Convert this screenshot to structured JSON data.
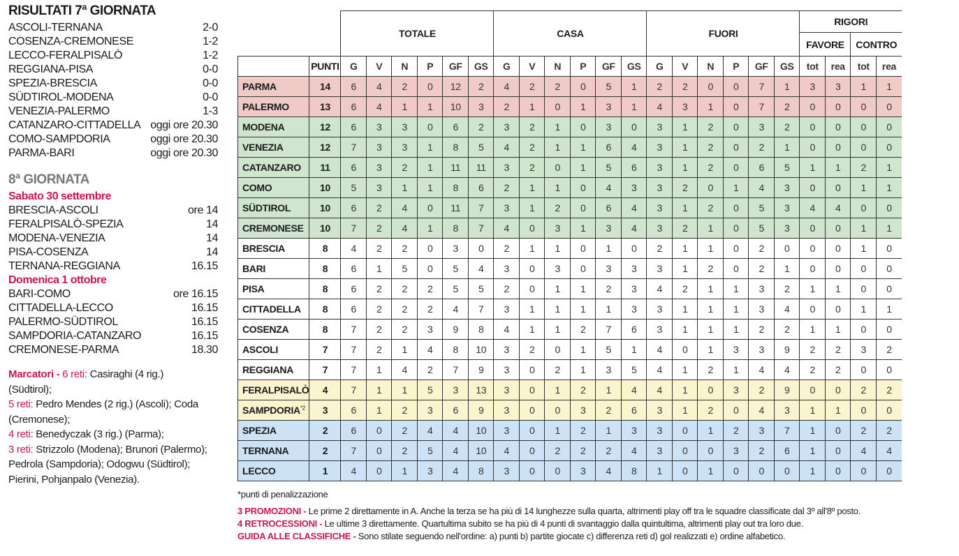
{
  "results": {
    "title": "RISULTATI 7ª GIORNATA",
    "matches": [
      [
        "ASCOLI-TERNANA",
        "2-0"
      ],
      [
        "COSENZA-CREMONESE",
        "1-2"
      ],
      [
        "LECCO-FERALPISALÒ",
        "1-2"
      ],
      [
        "REGGIANA-PISA",
        "0-0"
      ],
      [
        "SPEZIA-BRESCIA",
        "0-0"
      ],
      [
        "SÜDTIROL-MODENA",
        "0-0"
      ],
      [
        "VENEZIA-PALERMO",
        "1-3"
      ],
      [
        "CATANZARO-CITTADELLA",
        "oggi ore 20.30"
      ],
      [
        "COMO-SAMPDORIA",
        "oggi ore 20.30"
      ],
      [
        "PARMA-BARI",
        "oggi ore 20.30"
      ]
    ]
  },
  "next": {
    "title": "8ª GIORNATA",
    "days": [
      {
        "label": "Sabato 30 settembre",
        "matches": [
          [
            "BRESCIA-ASCOLI",
            "ore 14"
          ],
          [
            "FERALPISALÒ-SPEZIA",
            "14"
          ],
          [
            "MODENA-VENEZIA",
            "14"
          ],
          [
            "PISA-COSENZA",
            "14"
          ],
          [
            "TERNANA-REGGIANA",
            "16.15"
          ]
        ]
      },
      {
        "label": "Domenica 1 ottobre",
        "matches": [
          [
            "BARI-COMO",
            "ore 16.15"
          ],
          [
            "CITTADELLA-LECCO",
            "16.15"
          ],
          [
            "PALERMO-SÜDTIROL",
            "16.15"
          ],
          [
            "SAMPDORIA-CATANZARO",
            "16.15"
          ],
          [
            "CREMONESE-PARMA",
            "18.30"
          ]
        ]
      }
    ]
  },
  "scorers": {
    "label": "Marcatori -",
    "groups": [
      {
        "goals": "6 reti:",
        "text": "Casiraghi (4 rig.) (Südtirol);"
      },
      {
        "goals": "5 reti:",
        "text": "Pedro Mendes (2 rig.) (Ascoli); Coda (Cremonese);"
      },
      {
        "goals": "4 reti:",
        "text": "Benedyczak (3 rig.) (Parma);"
      },
      {
        "goals": "3 reti:",
        "text": "Strizzolo (Modena); Brunori (Palermo); Pedrola (Sampdoria); Odogwu (Südtirol); Pierini, Pohjanpalo (Venezia)."
      }
    ]
  },
  "standings": {
    "groups": {
      "totale": "TOTALE",
      "casa": "CASA",
      "fuori": "FUORI",
      "rigori": "RIGORI",
      "favore": "FAVORE",
      "contro": "CONTRO"
    },
    "punti": "PUNTI",
    "cols": [
      "G",
      "V",
      "N",
      "P",
      "GF",
      "GS"
    ],
    "rcols": [
      "tot",
      "rea",
      "tot",
      "rea"
    ],
    "zone_colors": {
      "red": "#efcac6",
      "green": "#cfe5cd",
      "yellow": "#faf5cf",
      "blue": "#cde3f5"
    },
    "rows": [
      {
        "team": "PARMA",
        "zone": "red",
        "pts": 14,
        "v": [
          6,
          4,
          2,
          0,
          12,
          2,
          4,
          2,
          2,
          0,
          5,
          1,
          2,
          2,
          0,
          0,
          7,
          1,
          3,
          3,
          1,
          1
        ]
      },
      {
        "team": "PALERMO",
        "zone": "red",
        "pts": 13,
        "v": [
          6,
          4,
          1,
          1,
          10,
          3,
          2,
          1,
          0,
          1,
          3,
          1,
          4,
          3,
          1,
          0,
          7,
          2,
          0,
          0,
          0,
          0
        ]
      },
      {
        "team": "MODENA",
        "zone": "green",
        "pts": 12,
        "v": [
          6,
          3,
          3,
          0,
          6,
          2,
          3,
          2,
          1,
          0,
          3,
          0,
          3,
          1,
          2,
          0,
          3,
          2,
          0,
          0,
          0,
          0
        ]
      },
      {
        "team": "VENEZIA",
        "zone": "green",
        "pts": 12,
        "v": [
          7,
          3,
          3,
          1,
          8,
          5,
          4,
          2,
          1,
          1,
          6,
          4,
          3,
          1,
          2,
          0,
          2,
          1,
          0,
          0,
          0,
          0
        ]
      },
      {
        "team": "CATANZARO",
        "zone": "green",
        "pts": 11,
        "v": [
          6,
          3,
          2,
          1,
          11,
          11,
          3,
          2,
          0,
          1,
          5,
          6,
          3,
          1,
          2,
          0,
          6,
          5,
          1,
          1,
          2,
          1
        ]
      },
      {
        "team": "COMO",
        "zone": "green",
        "pts": 10,
        "v": [
          5,
          3,
          1,
          1,
          8,
          6,
          2,
          1,
          1,
          0,
          4,
          3,
          3,
          2,
          0,
          1,
          4,
          3,
          0,
          0,
          1,
          1
        ]
      },
      {
        "team": "SÜDTIROL",
        "zone": "green",
        "pts": 10,
        "v": [
          6,
          2,
          4,
          0,
          11,
          7,
          3,
          1,
          2,
          0,
          6,
          4,
          3,
          1,
          2,
          0,
          5,
          3,
          4,
          4,
          0,
          0
        ]
      },
      {
        "team": "CREMONESE",
        "zone": "green",
        "pts": 10,
        "v": [
          7,
          2,
          4,
          1,
          8,
          7,
          4,
          0,
          3,
          1,
          3,
          4,
          3,
          2,
          1,
          0,
          5,
          3,
          0,
          0,
          1,
          1
        ]
      },
      {
        "team": "BRESCIA",
        "zone": "",
        "pts": 8,
        "v": [
          4,
          2,
          2,
          0,
          3,
          0,
          2,
          1,
          1,
          0,
          1,
          0,
          2,
          1,
          1,
          0,
          2,
          0,
          0,
          0,
          1,
          0
        ]
      },
      {
        "team": "BARI",
        "zone": "",
        "pts": 8,
        "v": [
          6,
          1,
          5,
          0,
          5,
          4,
          3,
          0,
          3,
          0,
          3,
          3,
          3,
          1,
          2,
          0,
          2,
          1,
          0,
          0,
          0,
          0
        ]
      },
      {
        "team": "PISA",
        "zone": "",
        "pts": 8,
        "v": [
          6,
          2,
          2,
          2,
          5,
          5,
          2,
          0,
          1,
          1,
          2,
          3,
          4,
          2,
          1,
          1,
          3,
          2,
          1,
          1,
          0,
          0
        ]
      },
      {
        "team": "CITTADELLA",
        "zone": "",
        "pts": 8,
        "v": [
          6,
          2,
          2,
          2,
          4,
          7,
          3,
          1,
          1,
          1,
          1,
          3,
          3,
          1,
          1,
          1,
          3,
          4,
          0,
          0,
          1,
          1
        ]
      },
      {
        "team": "COSENZA",
        "zone": "",
        "pts": 8,
        "v": [
          7,
          2,
          2,
          3,
          9,
          8,
          4,
          1,
          1,
          2,
          7,
          6,
          3,
          1,
          1,
          1,
          2,
          2,
          1,
          1,
          0,
          0
        ]
      },
      {
        "team": "ASCOLI",
        "zone": "",
        "pts": 7,
        "v": [
          7,
          2,
          1,
          4,
          8,
          10,
          3,
          2,
          0,
          1,
          5,
          1,
          4,
          0,
          1,
          3,
          3,
          9,
          2,
          2,
          3,
          2
        ]
      },
      {
        "team": "REGGIANA",
        "zone": "",
        "pts": 7,
        "v": [
          7,
          1,
          4,
          2,
          7,
          9,
          3,
          0,
          2,
          1,
          3,
          5,
          4,
          1,
          2,
          1,
          4,
          4,
          2,
          2,
          0,
          0
        ]
      },
      {
        "team": "FERALPISALÒ",
        "zone": "yellow",
        "pts": 4,
        "v": [
          7,
          1,
          1,
          5,
          3,
          13,
          3,
          0,
          1,
          2,
          1,
          4,
          4,
          1,
          0,
          3,
          2,
          9,
          0,
          0,
          2,
          2
        ]
      },
      {
        "team": "SAMPDORIA",
        "note": "*2",
        "zone": "yellow",
        "pts": 3,
        "v": [
          6,
          1,
          2,
          3,
          6,
          9,
          3,
          0,
          0,
          3,
          2,
          6,
          3,
          1,
          2,
          0,
          4,
          3,
          1,
          1,
          0,
          0
        ]
      },
      {
        "team": "SPEZIA",
        "zone": "blue",
        "pts": 2,
        "v": [
          6,
          0,
          2,
          4,
          4,
          10,
          3,
          0,
          1,
          2,
          1,
          3,
          3,
          0,
          1,
          2,
          3,
          7,
          1,
          0,
          2,
          2
        ]
      },
      {
        "team": "TERNANA",
        "zone": "blue",
        "pts": 2,
        "v": [
          7,
          0,
          2,
          5,
          4,
          10,
          4,
          0,
          2,
          2,
          2,
          4,
          3,
          0,
          0,
          3,
          2,
          6,
          1,
          0,
          4,
          4
        ]
      },
      {
        "team": "LECCO",
        "zone": "blue",
        "pts": 1,
        "v": [
          4,
          0,
          1,
          3,
          4,
          8,
          3,
          0,
          0,
          3,
          4,
          8,
          1,
          0,
          1,
          0,
          0,
          0,
          1,
          0,
          0,
          0
        ]
      }
    ]
  },
  "notes": {
    "penalty": "*punti di penalizzazione",
    "items": [
      {
        "label": "3 PROMOZIONI -",
        "text": " Le prime 2 direttamente in A. Anche la terza se ha più di 14 lunghezze sulla quarta, altrimenti play off tra le squadre classificate dal 3º all'8º posto."
      },
      {
        "label": "4 RETROCESSIONI -",
        "text": " Le ultime 3 direttamente. Quartultima subito se ha più di 4 punti di svantaggio dalla quintultima, altrimenti play out tra loro due."
      },
      {
        "label": "GUIDA ALLE CLASSIFICHE -",
        "text": "  Sono stilate seguendo nell'ordine: a) punti b) partite giocate c) differenza reti d) gol realizzati e) ordine alfabetico."
      }
    ]
  },
  "accent": "#c8184a"
}
